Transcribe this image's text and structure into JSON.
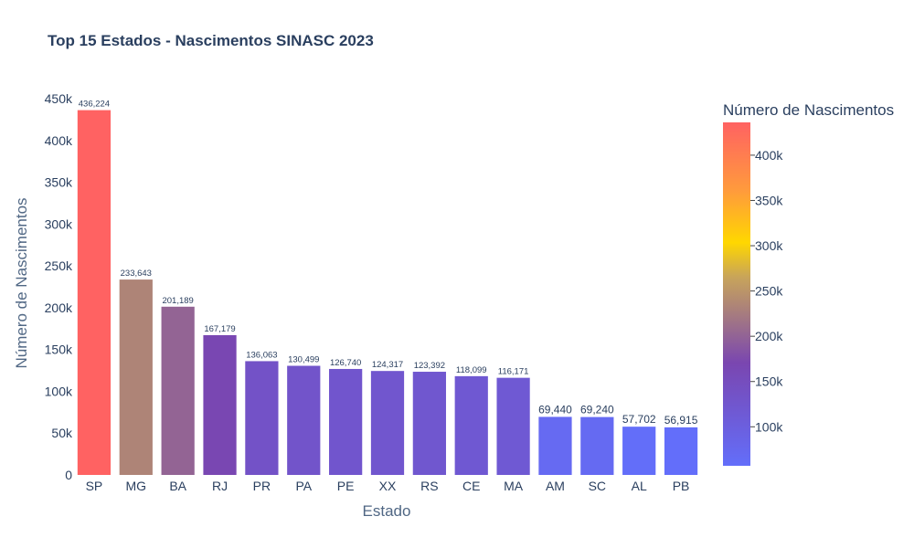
{
  "chart_data": {
    "type": "bar",
    "title": "Top 15 Estados - Nascimentos SINASC 2023",
    "xlabel": "Estado",
    "ylabel": "Número de Nascimentos",
    "ylim": [
      0,
      450000
    ],
    "categories": [
      "SP",
      "MG",
      "BA",
      "RJ",
      "PR",
      "PA",
      "PE",
      "XX",
      "RS",
      "CE",
      "MA",
      "AM",
      "SC",
      "AL",
      "PB"
    ],
    "values": [
      436224,
      233643,
      201189,
      167179,
      136063,
      130499,
      126740,
      124317,
      123392,
      118099,
      116171,
      69440,
      69240,
      57702,
      56915
    ],
    "value_labels": [
      "436,224",
      "233,643",
      "201,189",
      "167,179",
      "136,063",
      "130,499",
      "126,740",
      "124,317",
      "123,392",
      "118,099",
      "116,171",
      "69,440",
      "69,240",
      "57,702",
      "56,915"
    ],
    "y_ticks": [
      {
        "value": 0,
        "label": "0"
      },
      {
        "value": 50000,
        "label": "50k"
      },
      {
        "value": 100000,
        "label": "100k"
      },
      {
        "value": 150000,
        "label": "150k"
      },
      {
        "value": 200000,
        "label": "200k"
      },
      {
        "value": 250000,
        "label": "250k"
      },
      {
        "value": 300000,
        "label": "300k"
      },
      {
        "value": 350000,
        "label": "350k"
      },
      {
        "value": 400000,
        "label": "400k"
      },
      {
        "value": 450000,
        "label": "450k"
      }
    ],
    "grid": false,
    "colorbar": {
      "title": "Número de Nascimentos",
      "range": [
        56915,
        436224
      ],
      "ticks": [
        {
          "value": 100000,
          "label": "100k"
        },
        {
          "value": 150000,
          "label": "150k"
        },
        {
          "value": 200000,
          "label": "200k"
        },
        {
          "value": 250000,
          "label": "250k"
        },
        {
          "value": 300000,
          "label": "300k"
        },
        {
          "value": 350000,
          "label": "350k"
        },
        {
          "value": 400000,
          "label": "400k"
        }
      ],
      "colorscale": [
        [
          0.0,
          "#636efa"
        ],
        [
          0.3,
          "#7a46b0"
        ],
        [
          0.55,
          "#c8a45a"
        ],
        [
          0.65,
          "#ffd700"
        ],
        [
          0.8,
          "#ff9b3c"
        ],
        [
          1.0,
          "#ff6262"
        ]
      ]
    }
  }
}
